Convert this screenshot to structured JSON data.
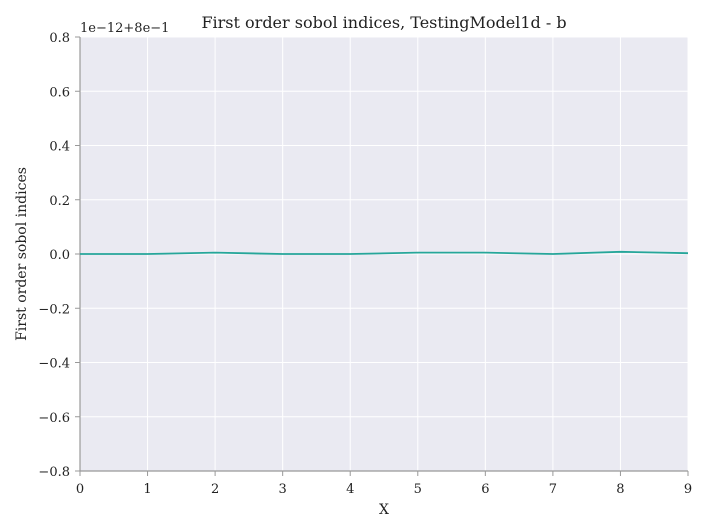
{
  "chart_data": {
    "type": "line",
    "title": "First order sobol indices, TestingModel1d - b",
    "xlabel": "X",
    "ylabel": "First order sobol indices",
    "axis_offset_label": "1e−12+8e−1",
    "xlim": [
      0,
      9
    ],
    "ylim": [
      -0.8,
      0.8
    ],
    "xticks": [
      0,
      1,
      2,
      3,
      4,
      5,
      6,
      7,
      8,
      9
    ],
    "yticks": [
      -0.8,
      -0.6,
      -0.4,
      -0.2,
      0.0,
      0.2,
      0.4,
      0.6,
      0.8
    ],
    "xtick_labels": [
      "0",
      "1",
      "2",
      "3",
      "4",
      "5",
      "6",
      "7",
      "8",
      "9"
    ],
    "ytick_labels": [
      "−0.8",
      "−0.6",
      "−0.4",
      "−0.2",
      "0.0",
      "0.2",
      "0.4",
      "0.6",
      "0.8"
    ],
    "grid": true,
    "background_color": "#eaeaf2",
    "series": [
      {
        "color": "#26a69a",
        "x": [
          0,
          1,
          2,
          3,
          4,
          5,
          6,
          7,
          8,
          9
        ],
        "y": [
          0.0,
          0.0,
          0.005,
          0.0,
          0.0,
          0.005,
          0.005,
          0.0,
          0.008,
          0.003
        ]
      }
    ]
  }
}
